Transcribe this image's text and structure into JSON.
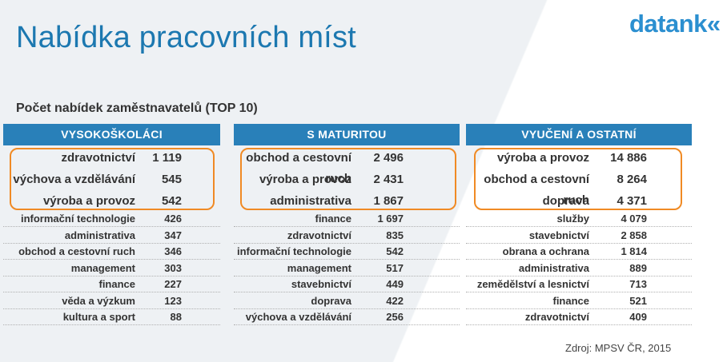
{
  "header": {
    "title": "Nabídka pracovních míst",
    "logo": "datank«",
    "subtitle": "Počet nabídek zaměstnavatelů (TOP 10)"
  },
  "columns": [
    {
      "heading": "VYSOKOŠKOLÁCI",
      "top": [
        {
          "label": "zdravotnictví",
          "value": "1 119"
        },
        {
          "label": "výchova a vzdělávání",
          "value": "545"
        },
        {
          "label": "výroba a provoz",
          "value": "542"
        }
      ],
      "rest": [
        {
          "label": "informační technologie",
          "value": "426"
        },
        {
          "label": "administrativa",
          "value": "347"
        },
        {
          "label": "obchod a cestovní ruch",
          "value": "346"
        },
        {
          "label": "management",
          "value": "303"
        },
        {
          "label": "finance",
          "value": "227"
        },
        {
          "label": "věda a výzkum",
          "value": "123"
        },
        {
          "label": "kultura a sport",
          "value": "88"
        }
      ]
    },
    {
      "heading": "S MATURITOU",
      "top": [
        {
          "label": "obchod a cestovní ruch",
          "value": "2 496"
        },
        {
          "label": "výroba a provoz",
          "value": "2 431"
        },
        {
          "label": "administrativa",
          "value": "1 867"
        }
      ],
      "rest": [
        {
          "label": "finance",
          "value": "1 697"
        },
        {
          "label": "zdravotnictví",
          "value": "835"
        },
        {
          "label": "informační technologie",
          "value": "542"
        },
        {
          "label": "management",
          "value": "517"
        },
        {
          "label": "stavebnictví",
          "value": "449"
        },
        {
          "label": "doprava",
          "value": "422"
        },
        {
          "label": "výchova a vzdělávání",
          "value": "256"
        }
      ]
    },
    {
      "heading": "VYUČENÍ A OSTATNÍ",
      "top": [
        {
          "label": "výroba a provoz",
          "value": "14 886"
        },
        {
          "label": "obchod a cestovní ruch",
          "value": "8 264"
        },
        {
          "label": "doprava",
          "value": "4 371"
        }
      ],
      "rest": [
        {
          "label": "služby",
          "value": "4 079"
        },
        {
          "label": "stavebnictví",
          "value": "2 858"
        },
        {
          "label": "obrana a ochrana",
          "value": "1 814"
        },
        {
          "label": "administrativa",
          "value": "889"
        },
        {
          "label": "zemědělství a lesnictví",
          "value": "713"
        },
        {
          "label": "finance",
          "value": "521"
        },
        {
          "label": "zdravotnictví",
          "value": "409"
        }
      ]
    }
  ],
  "footer": {
    "source": "Zdroj:  MPSV ČR, 2015"
  },
  "colors": {
    "title": "#1c78b0",
    "header_bg": "#2980b9",
    "highlight_border": "#f08a24"
  }
}
